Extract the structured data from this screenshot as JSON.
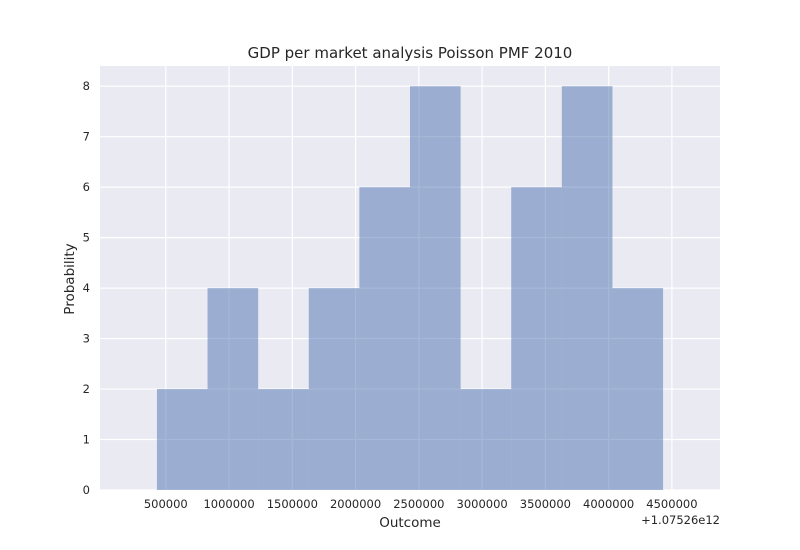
{
  "chart_data": {
    "type": "bar",
    "title": "GDP per market analysis Poisson PMF 2010",
    "xlabel": "Outcome",
    "ylabel": "Probability",
    "x_offset_label": "+1.07526e12",
    "bin_edges": [
      430000,
      830000,
      1230000,
      1630000,
      2030000,
      2430000,
      2830000,
      3230000,
      3630000,
      4030000,
      4430000
    ],
    "values": [
      2,
      4,
      2,
      4,
      6,
      8,
      2,
      6,
      8,
      4
    ],
    "xlim": [
      -20000,
      4880000
    ],
    "ylim": [
      0,
      8.4
    ],
    "x_ticks": [
      500000,
      1000000,
      1500000,
      2000000,
      2500000,
      3000000,
      3500000,
      4000000,
      4500000
    ],
    "x_tick_labels": [
      "500000",
      "1000000",
      "1500000",
      "2000000",
      "2500000",
      "3000000",
      "3500000",
      "4000000",
      "4500000"
    ],
    "y_ticks": [
      0,
      1,
      2,
      3,
      4,
      5,
      6,
      7,
      8
    ],
    "y_tick_labels": [
      "0",
      "1",
      "2",
      "3",
      "4",
      "5",
      "6",
      "7",
      "8"
    ],
    "grid": true,
    "colors": {
      "bar": "#4c72b0",
      "plot_background": "#eaeaf2",
      "grid": "#ffffff",
      "text": "#262626"
    }
  }
}
